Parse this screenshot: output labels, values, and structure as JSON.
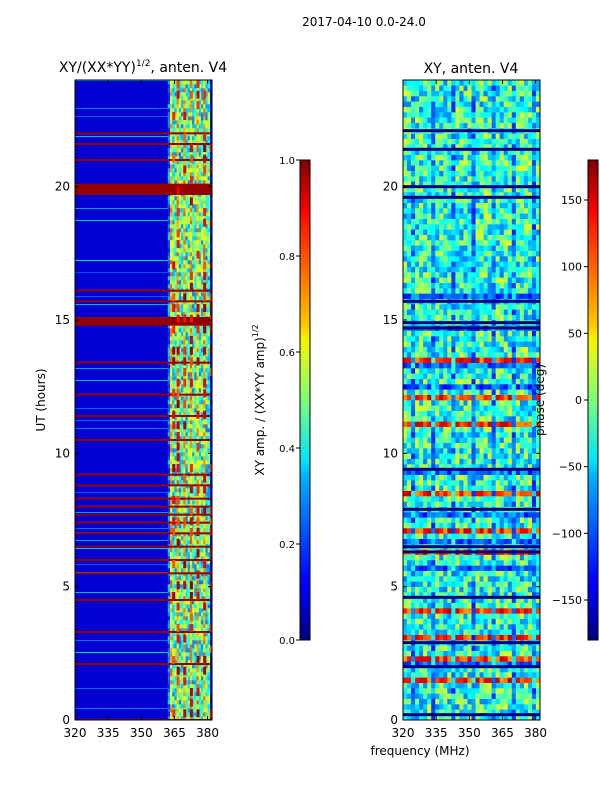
{
  "suptitle": "2017-04-10 0.0-24.0",
  "figure_xlabel": "frequency (MHz)",
  "chart_data": [
    {
      "type": "heatmap",
      "id": "amp",
      "title": "XY/(XX*YY)",
      "title_superscript": "1/2",
      "title_suffix": ", anten. V4",
      "xlabel": "",
      "ylabel": "UT (hours)",
      "xlim": [
        320,
        382
      ],
      "ylim": [
        0,
        24
      ],
      "xticks": [
        320,
        335,
        350,
        365,
        380
      ],
      "yticks": [
        0,
        5,
        10,
        15,
        20
      ],
      "colormap": "jet",
      "colorbar": {
        "label": "XY amp. / (XX*YY amp)",
        "label_superscript": "1/2",
        "range": [
          0.0,
          1.0
        ],
        "ticks": [
          "0.0",
          "0.2",
          "0.4",
          "0.6",
          "0.8",
          "1.0"
        ]
      },
      "features": {
        "background_value": 0.08,
        "bright_band_x": [
          362,
          381
        ],
        "saturated_rows_ut": [
          0.0,
          2.1,
          3.3,
          4.5,
          5.5,
          6.0,
          6.5,
          7.0,
          7.4,
          7.7,
          8.0,
          8.3,
          8.8,
          9.2,
          10.5,
          11.4,
          12.2,
          13.4,
          14.9,
          15.0,
          15.7,
          16.1,
          19.8,
          20.0,
          21.0,
          21.6,
          22.0
        ],
        "high_freq_columns_mhz": [
          364,
          366,
          369,
          372,
          375,
          378,
          381
        ]
      }
    },
    {
      "type": "heatmap",
      "id": "phase",
      "title": "XY, anten. V4",
      "xlabel": "",
      "ylabel": "",
      "xlim": [
        320,
        382
      ],
      "ylim": [
        0,
        24
      ],
      "xticks": [
        320,
        335,
        350,
        365,
        380
      ],
      "yticks": [
        0,
        5,
        10,
        15,
        20
      ],
      "colormap": "jet",
      "colorbar": {
        "label": "phase (deg)",
        "range": [
          -180,
          180
        ],
        "ticks": [
          "150",
          "100",
          "50",
          "0",
          "−50",
          "−100",
          "−150"
        ],
        "tick_values": [
          150,
          100,
          50,
          0,
          -50,
          -100,
          -150
        ]
      },
      "features": {
        "dark_rows_ut": [
          0.2,
          2.0,
          2.9,
          4.6,
          6.3,
          6.5,
          7.9,
          9.4,
          14.7,
          14.9,
          15.7,
          19.6,
          20.0,
          21.4,
          22.1
        ]
      }
    }
  ]
}
